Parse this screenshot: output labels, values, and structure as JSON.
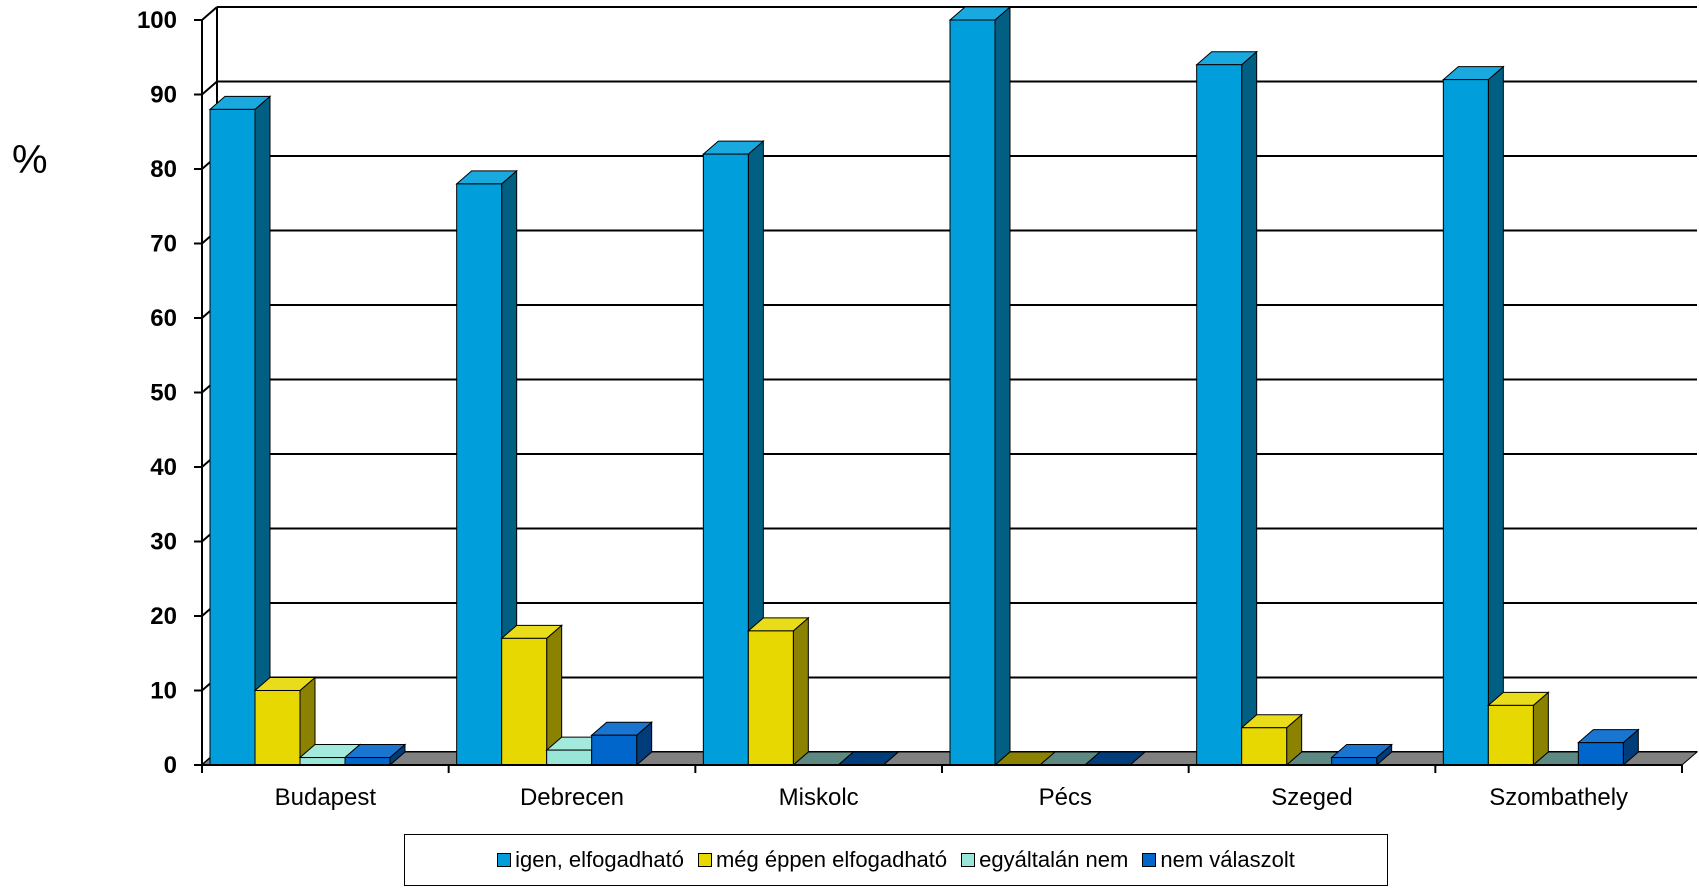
{
  "chart_data": {
    "type": "bar",
    "title": "",
    "xlabel": "",
    "ylabel": "%",
    "ylim": [
      0,
      100
    ],
    "yticks": [
      "0",
      "10",
      "20",
      "30",
      "40",
      "50",
      "60",
      "70",
      "80",
      "90",
      "100"
    ],
    "grid": true,
    "legend_position": "bottom",
    "categories": [
      "Budapest",
      "Debrecen",
      "Miskolc",
      "Pécs",
      "Szeged",
      "Szombathely"
    ],
    "series": [
      {
        "name": "igen, elfogadható",
        "values": [
          88,
          78,
          82,
          100,
          94,
          92
        ],
        "color": "#009FDB"
      },
      {
        "name": "még éppen elfogadható",
        "values": [
          10,
          17,
          18,
          0,
          5,
          8
        ],
        "color": "#E6D800"
      },
      {
        "name": "egyáltalán nem",
        "values": [
          1,
          2,
          0,
          0,
          0,
          0
        ],
        "color": "#99E6D8"
      },
      {
        "name": "nem válaszolt",
        "values": [
          1,
          4,
          0,
          0,
          1,
          3
        ],
        "color": "#0066CC"
      }
    ]
  }
}
